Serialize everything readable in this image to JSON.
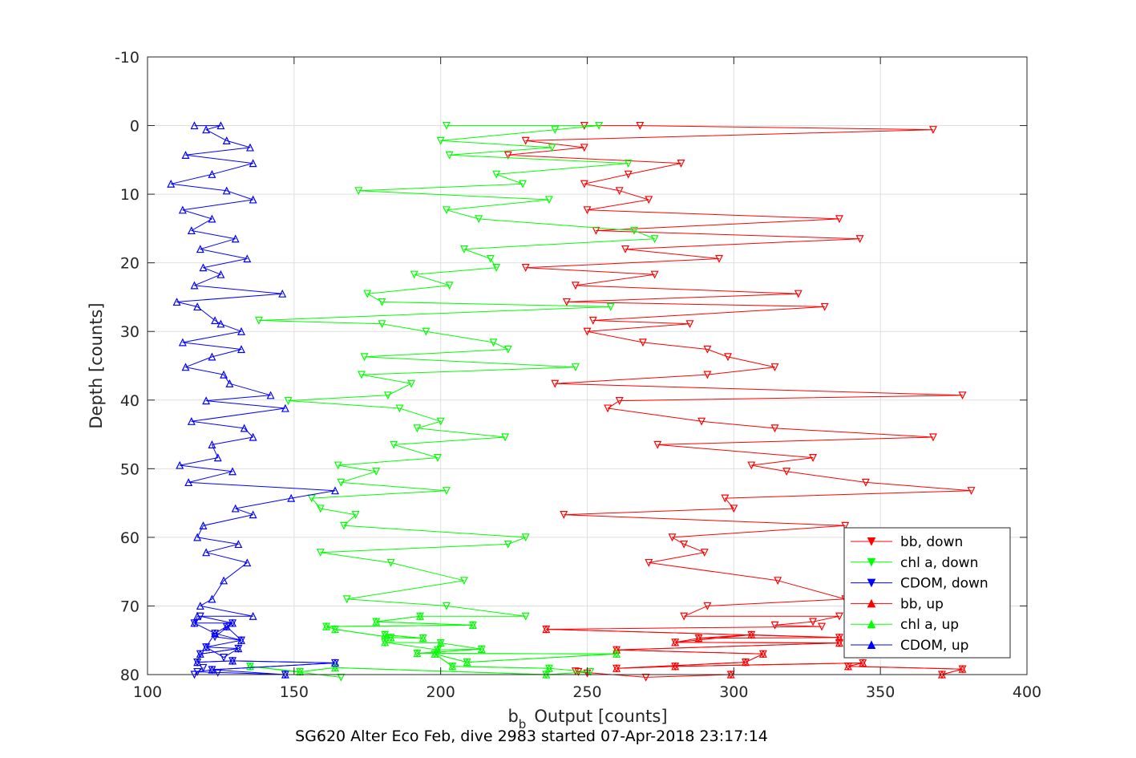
{
  "chart_data": {
    "type": "line",
    "title": "",
    "caption": "SG620 Alter Eco Feb, dive 2983 started 07-Apr-2018 23:17:14",
    "xlabel": "Output [counts]",
    "xlabel_prefix": "b",
    "xlabel_subscript": "b",
    "ylabel": "Depth [counts]",
    "xlim": [
      100,
      400
    ],
    "ylim": [
      -10,
      80
    ],
    "y_reversed": true,
    "grid": true,
    "legend_position": "bottom-right",
    "xticks": [
      "100",
      "150",
      "200",
      "250",
      "300",
      "350",
      "400"
    ],
    "yticks": [
      "-10",
      "0",
      "10",
      "20",
      "30",
      "40",
      "50",
      "60",
      "70",
      "80"
    ],
    "series": [
      {
        "name": "bb, down",
        "color": "#ff0000",
        "marker": "triangle-down",
        "points": [
          [
            249,
            0
          ],
          [
            268,
            0
          ],
          [
            368,
            0.6
          ],
          [
            229,
            2.2
          ],
          [
            249,
            3.2
          ],
          [
            223,
            4.3
          ],
          [
            282,
            5.5
          ],
          [
            264,
            7.1
          ],
          [
            249,
            8.5
          ],
          [
            261,
            9.5
          ],
          [
            271,
            10.8
          ],
          [
            250,
            12.3
          ],
          [
            336,
            13.6
          ],
          [
            253,
            15.3
          ],
          [
            343,
            16.5
          ],
          [
            263,
            18.0
          ],
          [
            295,
            19.4
          ],
          [
            229,
            20.7
          ],
          [
            273,
            21.7
          ],
          [
            246,
            23.3
          ],
          [
            322,
            24.5
          ],
          [
            243,
            25.7
          ],
          [
            331,
            26.4
          ],
          [
            252,
            28.4
          ],
          [
            285,
            28.9
          ],
          [
            250,
            30.0
          ],
          [
            269,
            31.6
          ],
          [
            291,
            32.6
          ],
          [
            298,
            33.7
          ],
          [
            314,
            35.2
          ],
          [
            291,
            36.3
          ],
          [
            239,
            37.6
          ],
          [
            378,
            39.3
          ],
          [
            261,
            40.1
          ],
          [
            257,
            41.2
          ],
          [
            289,
            43.1
          ],
          [
            314,
            44.1
          ],
          [
            368,
            45.4
          ],
          [
            274,
            46.5
          ],
          [
            327,
            48.4
          ],
          [
            306,
            49.5
          ],
          [
            318,
            50.4
          ],
          [
            345,
            52.0
          ],
          [
            381,
            53.2
          ],
          [
            297,
            54.3
          ],
          [
            300,
            55.8
          ],
          [
            242,
            56.7
          ],
          [
            338,
            58.3
          ],
          [
            279,
            60.0
          ],
          [
            283,
            61.0
          ],
          [
            290,
            62.2
          ],
          [
            271,
            63.7
          ],
          [
            315,
            66.3
          ],
          [
            338,
            69.0
          ],
          [
            291,
            70.0
          ],
          [
            283,
            71.5
          ],
          [
            336,
            71.5
          ],
          [
            327,
            72.3
          ],
          [
            314,
            72.8
          ],
          [
            330,
            73.0
          ],
          [
            236,
            73.4
          ],
          [
            336,
            74.6
          ],
          [
            288,
            74.7
          ],
          [
            306,
            74.2
          ],
          [
            280,
            75.3
          ],
          [
            336,
            75.4
          ],
          [
            260,
            76.4
          ],
          [
            310,
            77.0
          ],
          [
            304,
            78.2
          ],
          [
            260,
            79.1
          ],
          [
            280,
            78.8
          ],
          [
            344,
            78.3
          ],
          [
            339,
            78.8
          ],
          [
            378,
            79.2
          ],
          [
            371,
            80.0
          ],
          [
            299,
            80.0
          ],
          [
            270,
            80.4
          ],
          [
            247,
            79.6
          ],
          [
            250,
            79.8
          ],
          [
            246,
            79.5
          ]
        ]
      },
      {
        "name": "chl a, down",
        "color": "#00ff00",
        "marker": "triangle-down",
        "points": [
          [
            202,
            0
          ],
          [
            254,
            0
          ],
          [
            239,
            0.6
          ],
          [
            200,
            2.2
          ],
          [
            238,
            3.2
          ],
          [
            203,
            4.3
          ],
          [
            264,
            5.5
          ],
          [
            219,
            7.1
          ],
          [
            228,
            8.5
          ],
          [
            172,
            9.5
          ],
          [
            237,
            10.8
          ],
          [
            202,
            12.3
          ],
          [
            213,
            13.6
          ],
          [
            266,
            15.3
          ],
          [
            273,
            16.5
          ],
          [
            208,
            18.0
          ],
          [
            217,
            19.4
          ],
          [
            219,
            20.7
          ],
          [
            191,
            21.7
          ],
          [
            203,
            23.3
          ],
          [
            175,
            24.5
          ],
          [
            180,
            25.7
          ],
          [
            258,
            26.4
          ],
          [
            138,
            28.4
          ],
          [
            180,
            28.9
          ],
          [
            195,
            30.0
          ],
          [
            218,
            31.6
          ],
          [
            223,
            32.6
          ],
          [
            174,
            33.7
          ],
          [
            246,
            35.2
          ],
          [
            173,
            36.3
          ],
          [
            190,
            37.6
          ],
          [
            182,
            39.3
          ],
          [
            148,
            40.1
          ],
          [
            186,
            41.2
          ],
          [
            200,
            43.1
          ],
          [
            192,
            44.1
          ],
          [
            222,
            45.4
          ],
          [
            184,
            46.5
          ],
          [
            199,
            48.4
          ],
          [
            165,
            49.5
          ],
          [
            178,
            50.4
          ],
          [
            166,
            52.0
          ],
          [
            202,
            53.2
          ],
          [
            156,
            54.3
          ],
          [
            159,
            55.8
          ],
          [
            171,
            56.7
          ],
          [
            167,
            58.3
          ],
          [
            229,
            60.0
          ],
          [
            223,
            61.0
          ],
          [
            159,
            62.2
          ],
          [
            183,
            63.7
          ],
          [
            208,
            66.3
          ],
          [
            168,
            69.0
          ],
          [
            202,
            70.0
          ],
          [
            229,
            71.5
          ],
          [
            193,
            71.5
          ],
          [
            178,
            72.3
          ],
          [
            211,
            72.8
          ],
          [
            161,
            73.0
          ],
          [
            164,
            73.4
          ],
          [
            183,
            74.6
          ],
          [
            194,
            74.7
          ],
          [
            181,
            74.2
          ],
          [
            181,
            75.3
          ],
          [
            199,
            76.4
          ],
          [
            200,
            75.4
          ],
          [
            214,
            76.3
          ],
          [
            192,
            76.9
          ],
          [
            260,
            77.0
          ],
          [
            209,
            78.2
          ],
          [
            198,
            77.0
          ],
          [
            204,
            78.8
          ],
          [
            237,
            79.1
          ],
          [
            251,
            79.6
          ],
          [
            236,
            80.0
          ],
          [
            164,
            79.0
          ],
          [
            152,
            79.6
          ],
          [
            135,
            78.8
          ],
          [
            166,
            80.4
          ]
        ]
      },
      {
        "name": "CDOM, down",
        "color": "#0000ff",
        "marker": "triangle-down",
        "points": [
          [
            127,
            73.0
          ],
          [
            132,
            75.0
          ],
          [
            123,
            74.5
          ],
          [
            129,
            72.5
          ],
          [
            118,
            71.5
          ],
          [
            116,
            72.5
          ],
          [
            123,
            74.0
          ],
          [
            120,
            76.0
          ],
          [
            126,
            77.5
          ],
          [
            131,
            76.2
          ],
          [
            118,
            77.0
          ],
          [
            117,
            78.2
          ],
          [
            129,
            78.0
          ],
          [
            164,
            78.3
          ],
          [
            122,
            79.3
          ],
          [
            117,
            79.6
          ],
          [
            124,
            79.7
          ],
          [
            147,
            80.0
          ],
          [
            116,
            80.0
          ],
          [
            119,
            79.0
          ]
        ]
      },
      {
        "name": "bb, up",
        "color": "#ff0000",
        "marker": "triangle-up",
        "points": [
          [
            236,
            73.4
          ],
          [
            336,
            74.6
          ],
          [
            306,
            74.2
          ],
          [
            288,
            74.7
          ],
          [
            280,
            75.3
          ],
          [
            336,
            75.4
          ],
          [
            260,
            76.4
          ],
          [
            310,
            77.0
          ],
          [
            304,
            78.2
          ],
          [
            260,
            79.1
          ],
          [
            280,
            78.8
          ],
          [
            344,
            78.3
          ],
          [
            339,
            78.8
          ],
          [
            378,
            79.2
          ],
          [
            371,
            80.0
          ],
          [
            299,
            80.0
          ]
        ]
      },
      {
        "name": "chl a, up",
        "color": "#00ff00",
        "marker": "triangle-up",
        "points": [
          [
            193,
            71.5
          ],
          [
            178,
            72.3
          ],
          [
            211,
            72.8
          ],
          [
            161,
            73.0
          ],
          [
            164,
            73.4
          ],
          [
            183,
            74.6
          ],
          [
            194,
            74.7
          ],
          [
            181,
            74.2
          ],
          [
            181,
            75.3
          ],
          [
            200,
            75.4
          ],
          [
            199,
            76.4
          ],
          [
            214,
            76.3
          ],
          [
            192,
            76.9
          ],
          [
            260,
            77.0
          ],
          [
            209,
            78.2
          ],
          [
            198,
            77.0
          ],
          [
            204,
            78.8
          ],
          [
            237,
            79.1
          ],
          [
            236,
            80.0
          ],
          [
            164,
            79.0
          ],
          [
            152,
            79.6
          ],
          [
            135,
            78.8
          ]
        ]
      },
      {
        "name": "CDOM, up",
        "color": "#0000ff",
        "marker": "triangle-up",
        "points": [
          [
            116,
            0
          ],
          [
            125,
            0
          ],
          [
            120,
            0.6
          ],
          [
            127,
            2.2
          ],
          [
            135,
            3.2
          ],
          [
            113,
            4.3
          ],
          [
            136,
            5.5
          ],
          [
            122,
            7.1
          ],
          [
            108,
            8.5
          ],
          [
            127,
            9.5
          ],
          [
            136,
            10.8
          ],
          [
            112,
            12.3
          ],
          [
            122,
            13.6
          ],
          [
            115,
            15.3
          ],
          [
            130,
            16.5
          ],
          [
            118,
            18.0
          ],
          [
            134,
            19.4
          ],
          [
            119,
            20.7
          ],
          [
            125,
            21.7
          ],
          [
            116,
            23.3
          ],
          [
            146,
            24.5
          ],
          [
            110,
            25.7
          ],
          [
            117,
            26.4
          ],
          [
            123,
            28.4
          ],
          [
            125,
            28.9
          ],
          [
            132,
            30.0
          ],
          [
            112,
            31.6
          ],
          [
            132,
            32.6
          ],
          [
            122,
            33.7
          ],
          [
            113,
            35.2
          ],
          [
            126,
            36.3
          ],
          [
            128,
            37.6
          ],
          [
            142,
            39.3
          ],
          [
            120,
            40.1
          ],
          [
            147,
            41.2
          ],
          [
            115,
            43.1
          ],
          [
            133,
            44.1
          ],
          [
            136,
            45.4
          ],
          [
            122,
            46.5
          ],
          [
            124,
            48.4
          ],
          [
            111,
            49.5
          ],
          [
            129,
            50.4
          ],
          [
            114,
            52.0
          ],
          [
            164,
            53.2
          ],
          [
            149,
            54.3
          ],
          [
            130,
            55.8
          ],
          [
            136,
            56.7
          ],
          [
            119,
            58.3
          ],
          [
            117,
            60.0
          ],
          [
            131,
            61.0
          ],
          [
            120,
            62.2
          ],
          [
            134,
            63.7
          ],
          [
            126,
            66.3
          ],
          [
            122,
            69.0
          ],
          [
            118,
            70.0
          ],
          [
            136,
            71.5
          ],
          [
            117,
            71.5
          ],
          [
            116,
            72.5
          ],
          [
            129,
            72.5
          ],
          [
            127,
            73.0
          ],
          [
            123,
            74.0
          ],
          [
            132,
            75.0
          ],
          [
            120,
            76.0
          ],
          [
            131,
            76.2
          ],
          [
            118,
            77.0
          ],
          [
            117,
            78.2
          ],
          [
            129,
            78.0
          ],
          [
            164,
            78.3
          ],
          [
            122,
            79.3
          ],
          [
            147,
            80.0
          ]
        ]
      }
    ]
  }
}
